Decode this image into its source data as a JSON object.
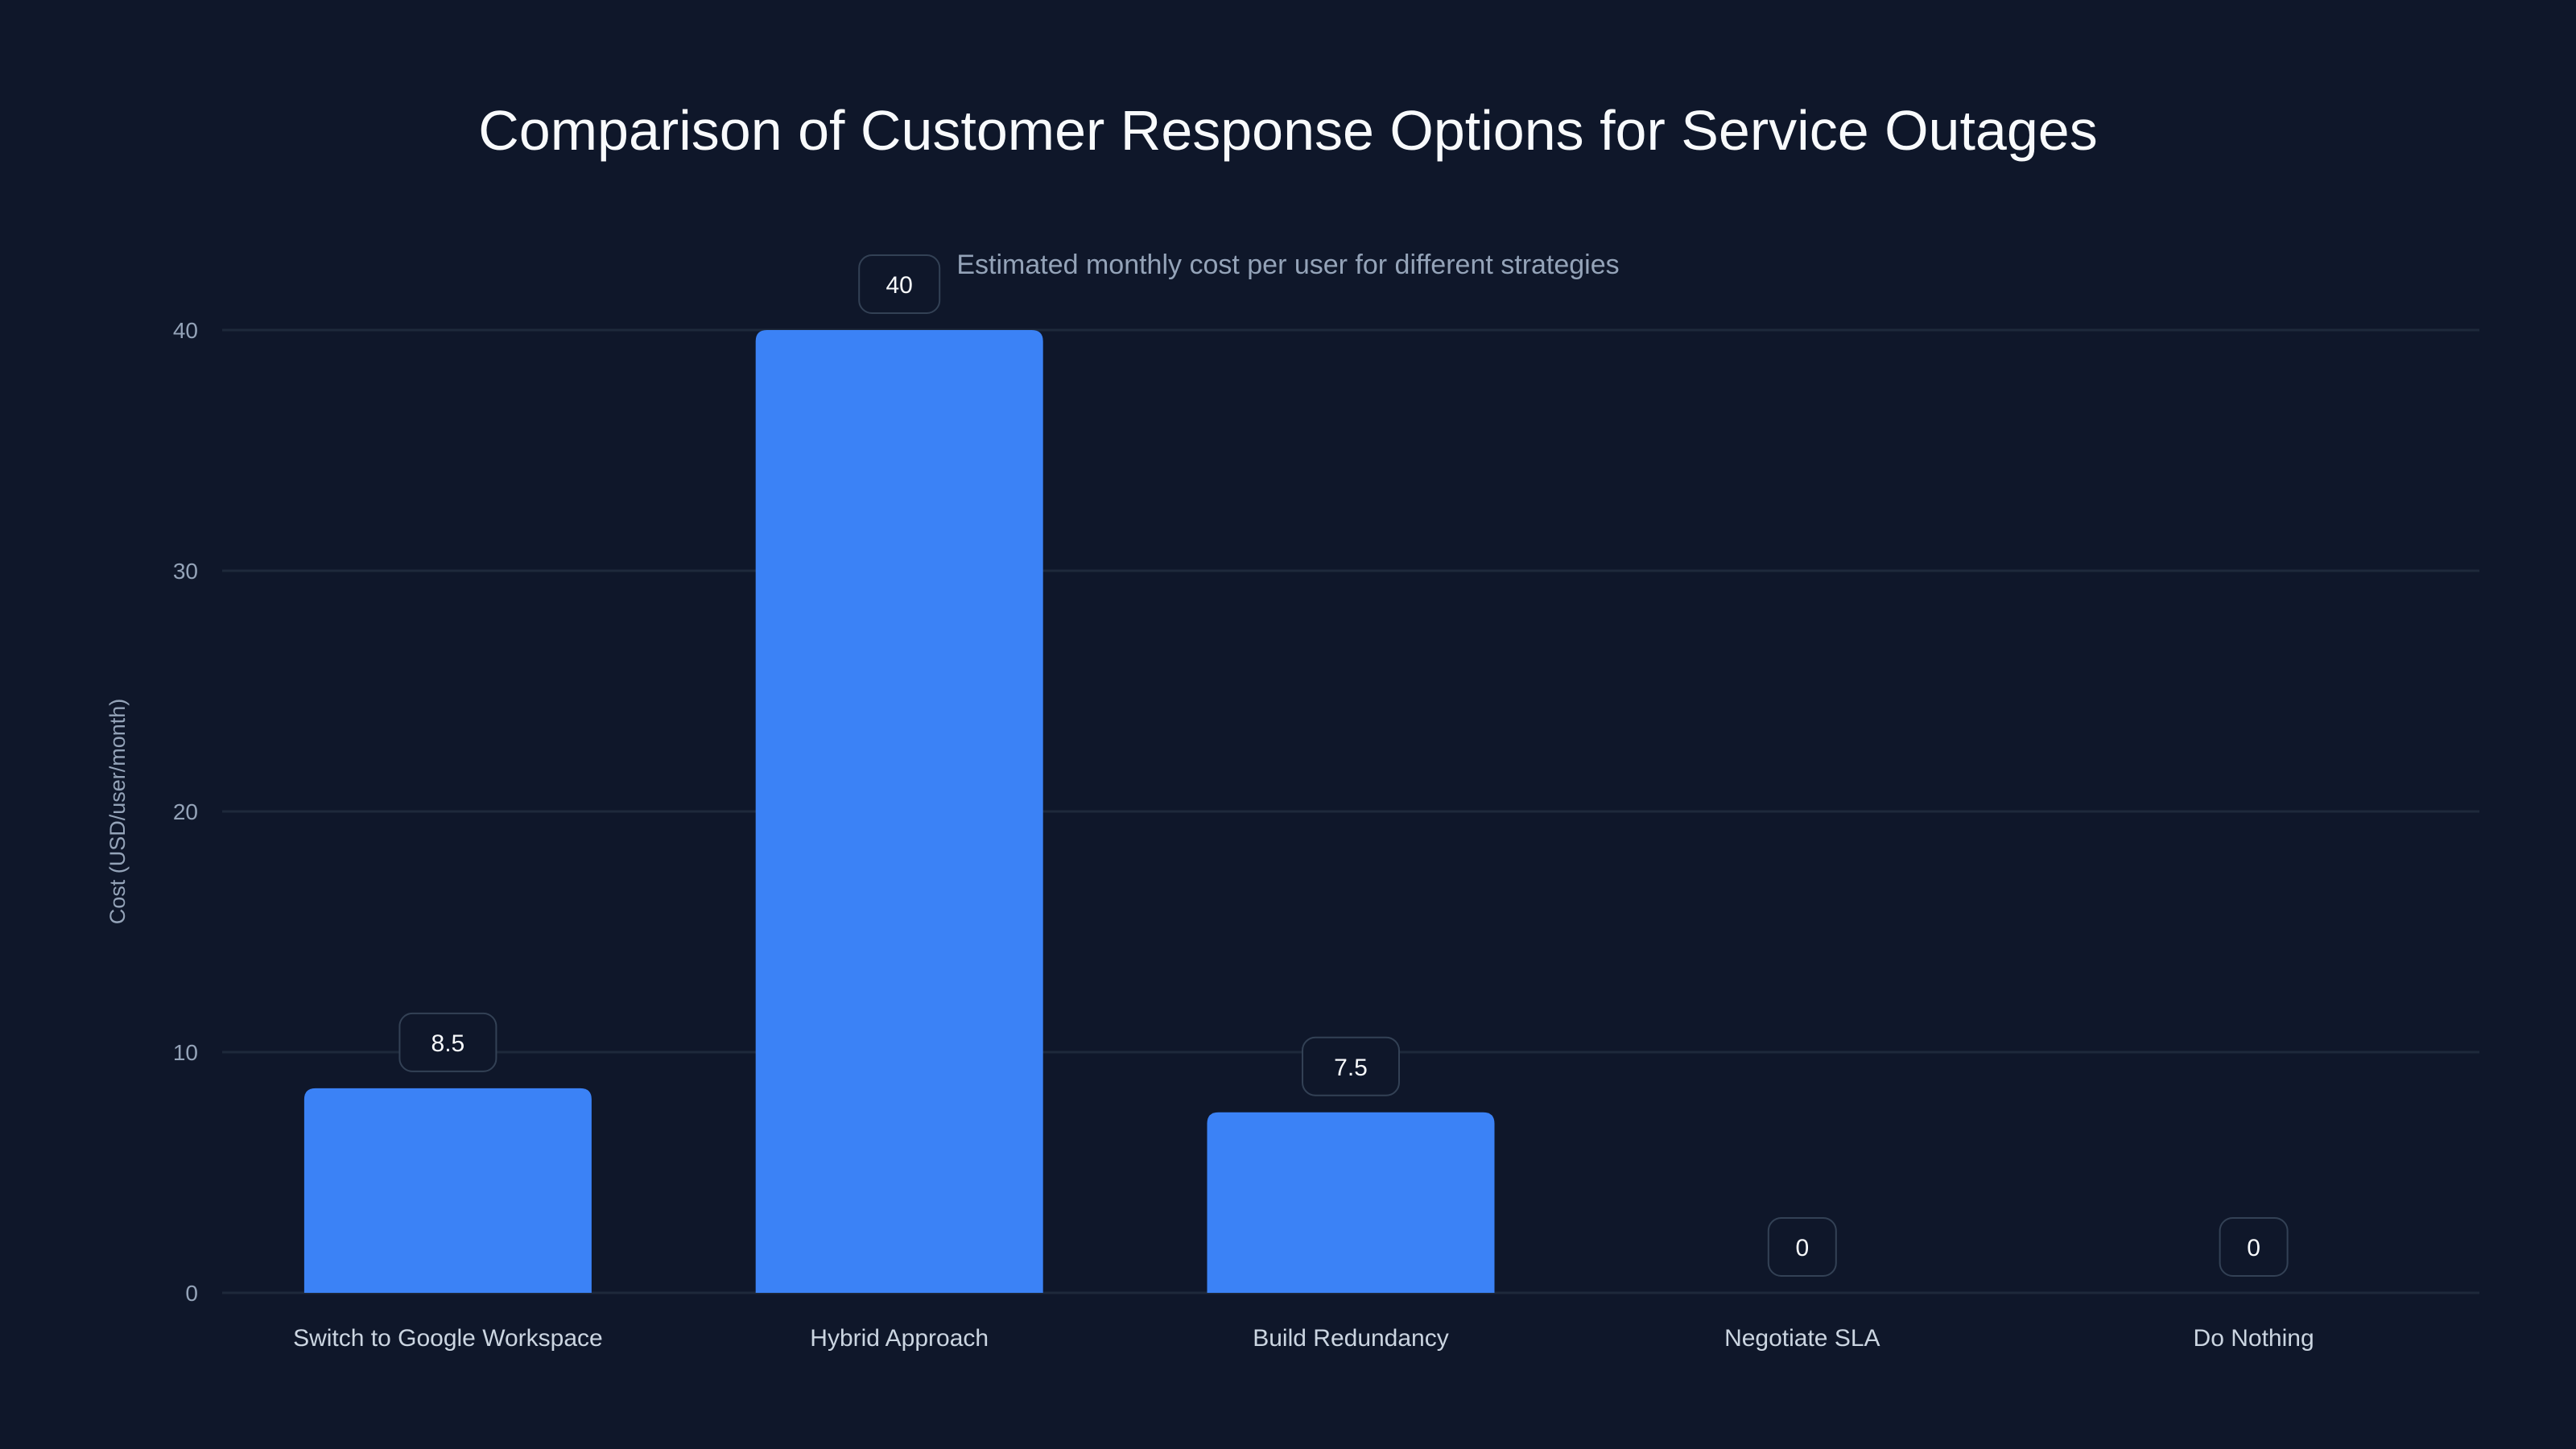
{
  "chart_data": {
    "type": "bar",
    "title": "Comparison of Customer Response Options for Service Outages",
    "subtitle": "Estimated monthly cost per user for different strategies",
    "xlabel": "",
    "ylabel": "Cost (USD/user/month)",
    "categories": [
      "Switch to Google Workspace",
      "Hybrid Approach",
      "Build Redundancy",
      "Negotiate SLA",
      "Do Nothing"
    ],
    "values": [
      8.5,
      40,
      7.5,
      0,
      0
    ],
    "data_labels": [
      "8.5",
      "40",
      "7.5",
      "0",
      "0"
    ],
    "ylim": [
      0,
      40
    ],
    "yticks": [
      0,
      10,
      20,
      30,
      40
    ],
    "ytick_labels": [
      "0",
      "10",
      "20",
      "30",
      "40"
    ],
    "grid": true,
    "colors": {
      "background": "#0f172a",
      "bar": "#3b82f6",
      "grid": "#1e293b",
      "label_border": "#334155"
    }
  }
}
